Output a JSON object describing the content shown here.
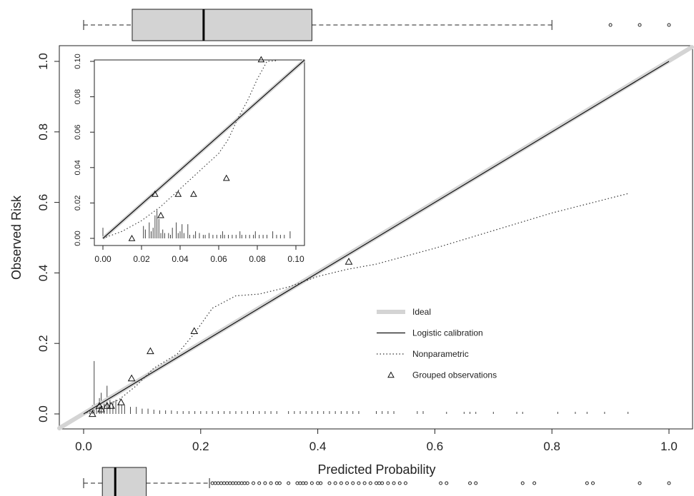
{
  "chart_data": [
    {
      "type": "scatter",
      "panel": "main",
      "title": "",
      "xlabel": "Predicted Probability",
      "ylabel": "Observed Risk",
      "xlim": [
        0,
        1
      ],
      "ylim": [
        0,
        1
      ],
      "x_ticks": [
        "0.0",
        "0.2",
        "0.4",
        "0.6",
        "0.8",
        "1.0"
      ],
      "y_ticks": [
        "0.0",
        "0.2",
        "0.4",
        "0.6",
        "0.8",
        "1.0"
      ],
      "legend_position": "center-right",
      "legend": [
        {
          "label": "Ideal",
          "style": "thick-light-gray-line"
        },
        {
          "label": "Logistic calibration",
          "style": "solid-line"
        },
        {
          "label": "Nonparametric",
          "style": "dotted-line"
        },
        {
          "label": "Grouped observations",
          "style": "triangle"
        }
      ],
      "series": [
        {
          "name": "Ideal",
          "x": [
            0,
            1
          ],
          "y": [
            0,
            1
          ]
        },
        {
          "name": "Logistic calibration",
          "x": [
            0,
            0.25,
            0.5,
            0.75,
            1.0
          ],
          "y": [
            0,
            0.25,
            0.5,
            0.75,
            1.0
          ]
        },
        {
          "name": "Nonparametric",
          "x": [
            0.0,
            0.03,
            0.06,
            0.09,
            0.12,
            0.16,
            0.19,
            0.22,
            0.26,
            0.3,
            0.35,
            0.4,
            0.45,
            0.5,
            0.6,
            0.7,
            0.8,
            0.93
          ],
          "y": [
            0.0,
            0.02,
            0.04,
            0.08,
            0.13,
            0.17,
            0.23,
            0.3,
            0.335,
            0.34,
            0.36,
            0.39,
            0.41,
            0.425,
            0.47,
            0.52,
            0.57,
            0.625
          ]
        },
        {
          "name": "Grouped observations",
          "x": [
            0.015,
            0.027,
            0.03,
            0.04,
            0.047,
            0.064,
            0.082,
            0.114,
            0.189,
            0.453
          ],
          "y": [
            0.0,
            0.023,
            0.013,
            0.023,
            0.023,
            0.033,
            0.101,
            0.178,
            0.235,
            0.432
          ]
        }
      ],
      "rug_spikes": [
        {
          "x": 0.01,
          "h": 0.015
        },
        {
          "x": 0.015,
          "h": 0.025
        },
        {
          "x": 0.018,
          "h": 0.15
        },
        {
          "x": 0.022,
          "h": 0.03
        },
        {
          "x": 0.027,
          "h": 0.045
        },
        {
          "x": 0.03,
          "h": 0.06
        },
        {
          "x": 0.035,
          "h": 0.04
        },
        {
          "x": 0.04,
          "h": 0.08
        },
        {
          "x": 0.045,
          "h": 0.05
        },
        {
          "x": 0.05,
          "h": 0.035
        },
        {
          "x": 0.055,
          "h": 0.04
        },
        {
          "x": 0.06,
          "h": 0.03
        },
        {
          "x": 0.065,
          "h": 0.025
        },
        {
          "x": 0.07,
          "h": 0.025
        },
        {
          "x": 0.08,
          "h": 0.02
        },
        {
          "x": 0.09,
          "h": 0.02
        },
        {
          "x": 0.1,
          "h": 0.015
        },
        {
          "x": 0.11,
          "h": 0.015
        },
        {
          "x": 0.12,
          "h": 0.012
        },
        {
          "x": 0.13,
          "h": 0.01
        },
        {
          "x": 0.14,
          "h": 0.01
        },
        {
          "x": 0.15,
          "h": 0.01
        },
        {
          "x": 0.16,
          "h": 0.008
        },
        {
          "x": 0.17,
          "h": 0.008
        },
        {
          "x": 0.18,
          "h": 0.008
        },
        {
          "x": 0.19,
          "h": 0.008
        },
        {
          "x": 0.2,
          "h": 0.008
        },
        {
          "x": 0.21,
          "h": 0.008
        },
        {
          "x": 0.22,
          "h": 0.008
        },
        {
          "x": 0.23,
          "h": 0.008
        },
        {
          "x": 0.24,
          "h": 0.008
        },
        {
          "x": 0.25,
          "h": 0.008
        },
        {
          "x": 0.26,
          "h": 0.008
        },
        {
          "x": 0.27,
          "h": 0.008
        },
        {
          "x": 0.28,
          "h": 0.008
        },
        {
          "x": 0.29,
          "h": 0.008
        },
        {
          "x": 0.3,
          "h": 0.008
        },
        {
          "x": 0.31,
          "h": 0.008
        },
        {
          "x": 0.32,
          "h": 0.008
        },
        {
          "x": 0.33,
          "h": 0.008
        },
        {
          "x": 0.35,
          "h": 0.008
        },
        {
          "x": 0.36,
          "h": 0.008
        },
        {
          "x": 0.37,
          "h": 0.008
        },
        {
          "x": 0.38,
          "h": 0.008
        },
        {
          "x": 0.39,
          "h": 0.008
        },
        {
          "x": 0.4,
          "h": 0.008
        },
        {
          "x": 0.41,
          "h": 0.008
        },
        {
          "x": 0.42,
          "h": 0.008
        },
        {
          "x": 0.43,
          "h": 0.008
        },
        {
          "x": 0.44,
          "h": 0.008
        },
        {
          "x": 0.45,
          "h": 0.008
        },
        {
          "x": 0.46,
          "h": 0.008
        },
        {
          "x": 0.47,
          "h": 0.008
        },
        {
          "x": 0.5,
          "h": 0.008
        },
        {
          "x": 0.51,
          "h": 0.008
        },
        {
          "x": 0.52,
          "h": 0.008
        },
        {
          "x": 0.53,
          "h": 0.008
        },
        {
          "x": 0.57,
          "h": 0.008
        },
        {
          "x": 0.58,
          "h": 0.008
        },
        {
          "x": 0.62,
          "h": 0.006
        },
        {
          "x": 0.65,
          "h": 0.006
        },
        {
          "x": 0.66,
          "h": 0.006
        },
        {
          "x": 0.67,
          "h": 0.006
        },
        {
          "x": 0.7,
          "h": 0.006
        },
        {
          "x": 0.74,
          "h": 0.006
        },
        {
          "x": 0.75,
          "h": 0.006
        },
        {
          "x": 0.81,
          "h": 0.006
        },
        {
          "x": 0.84,
          "h": 0.006
        },
        {
          "x": 0.86,
          "h": 0.006
        },
        {
          "x": 0.89,
          "h": 0.006
        },
        {
          "x": 0.93,
          "h": 0.006
        }
      ]
    },
    {
      "type": "scatter",
      "panel": "inset",
      "title": "",
      "xlim": [
        0,
        0.1
      ],
      "ylim": [
        0,
        0.1
      ],
      "x_ticks": [
        "0.00",
        "0.02",
        "0.04",
        "0.06",
        "0.08",
        "0.10"
      ],
      "y_ticks": [
        "0.00",
        "0.02",
        "0.04",
        "0.06",
        "0.08",
        "0.10"
      ],
      "series": [
        {
          "name": "Ideal",
          "x": [
            0,
            0.104
          ],
          "y": [
            0,
            0.104
          ]
        },
        {
          "name": "Logistic calibration",
          "x": [
            0,
            0.104
          ],
          "y": [
            0,
            0.104
          ]
        },
        {
          "name": "Nonparametric",
          "x": [
            0.0,
            0.01,
            0.02,
            0.03,
            0.04,
            0.05,
            0.06,
            0.065,
            0.07,
            0.075,
            0.08,
            0.085,
            0.09
          ],
          "y": [
            0.0,
            0.004,
            0.01,
            0.018,
            0.028,
            0.038,
            0.048,
            0.056,
            0.068,
            0.078,
            0.09,
            0.1,
            0.105
          ]
        },
        {
          "name": "Grouped observations",
          "x": [
            0.015,
            0.027,
            0.03,
            0.039,
            0.047,
            0.064,
            0.082
          ],
          "y": [
            0.0,
            0.025,
            0.013,
            0.025,
            0.025,
            0.034,
            0.101
          ]
        }
      ],
      "rug_spikes": [
        {
          "x": 0.0,
          "h": 0.006
        },
        {
          "x": 0.021,
          "h": 0.007
        },
        {
          "x": 0.022,
          "h": 0.005
        },
        {
          "x": 0.024,
          "h": 0.009
        },
        {
          "x": 0.025,
          "h": 0.004
        },
        {
          "x": 0.026,
          "h": 0.006
        },
        {
          "x": 0.027,
          "h": 0.013
        },
        {
          "x": 0.028,
          "h": 0.016
        },
        {
          "x": 0.029,
          "h": 0.011
        },
        {
          "x": 0.03,
          "h": 0.003
        },
        {
          "x": 0.031,
          "h": 0.005
        },
        {
          "x": 0.032,
          "h": 0.003
        },
        {
          "x": 0.034,
          "h": 0.003
        },
        {
          "x": 0.035,
          "h": 0.002
        },
        {
          "x": 0.036,
          "h": 0.006
        },
        {
          "x": 0.038,
          "h": 0.009
        },
        {
          "x": 0.039,
          "h": 0.003
        },
        {
          "x": 0.04,
          "h": 0.004
        },
        {
          "x": 0.041,
          "h": 0.008
        },
        {
          "x": 0.042,
          "h": 0.003
        },
        {
          "x": 0.044,
          "h": 0.008
        },
        {
          "x": 0.045,
          "h": 0.002
        },
        {
          "x": 0.047,
          "h": 0.002
        },
        {
          "x": 0.048,
          "h": 0.004
        },
        {
          "x": 0.05,
          "h": 0.003
        },
        {
          "x": 0.052,
          "h": 0.002
        },
        {
          "x": 0.053,
          "h": 0.002
        },
        {
          "x": 0.055,
          "h": 0.003
        },
        {
          "x": 0.057,
          "h": 0.002
        },
        {
          "x": 0.059,
          "h": 0.002
        },
        {
          "x": 0.061,
          "h": 0.002
        },
        {
          "x": 0.062,
          "h": 0.004
        },
        {
          "x": 0.063,
          "h": 0.002
        },
        {
          "x": 0.065,
          "h": 0.002
        },
        {
          "x": 0.067,
          "h": 0.002
        },
        {
          "x": 0.069,
          "h": 0.002
        },
        {
          "x": 0.071,
          "h": 0.004
        },
        {
          "x": 0.072,
          "h": 0.002
        },
        {
          "x": 0.074,
          "h": 0.002
        },
        {
          "x": 0.076,
          "h": 0.002
        },
        {
          "x": 0.078,
          "h": 0.002
        },
        {
          "x": 0.079,
          "h": 0.004
        },
        {
          "x": 0.081,
          "h": 0.002
        },
        {
          "x": 0.083,
          "h": 0.002
        },
        {
          "x": 0.085,
          "h": 0.002
        },
        {
          "x": 0.088,
          "h": 0.004
        },
        {
          "x": 0.09,
          "h": 0.002
        },
        {
          "x": 0.092,
          "h": 0.002
        },
        {
          "x": 0.094,
          "h": 0.002
        },
        {
          "x": 0.097,
          "h": 0.004
        }
      ]
    },
    {
      "type": "boxplot",
      "panel": "top-marginal",
      "xlim": [
        0,
        1
      ],
      "whisker_low": 0.0,
      "q1": 0.083,
      "median": 0.205,
      "q3": 0.39,
      "whisker_high": 0.8,
      "outliers": [
        0.9,
        0.95,
        1.0
      ]
    },
    {
      "type": "boxplot",
      "panel": "bottom-marginal",
      "xlim": [
        0,
        1
      ],
      "whisker_low": 0.0,
      "q1": 0.032,
      "median": 0.054,
      "q3": 0.107,
      "whisker_high": 0.215,
      "outliers": [
        0.22,
        0.225,
        0.23,
        0.235,
        0.24,
        0.245,
        0.25,
        0.255,
        0.26,
        0.265,
        0.27,
        0.275,
        0.28,
        0.29,
        0.3,
        0.31,
        0.32,
        0.33,
        0.335,
        0.35,
        0.365,
        0.37,
        0.375,
        0.38,
        0.39,
        0.4,
        0.405,
        0.42,
        0.43,
        0.44,
        0.45,
        0.46,
        0.47,
        0.48,
        0.49,
        0.5,
        0.505,
        0.51,
        0.52,
        0.53,
        0.54,
        0.55,
        0.61,
        0.62,
        0.66,
        0.67,
        0.75,
        0.77,
        0.86,
        0.87,
        0.95,
        1.0
      ]
    }
  ]
}
